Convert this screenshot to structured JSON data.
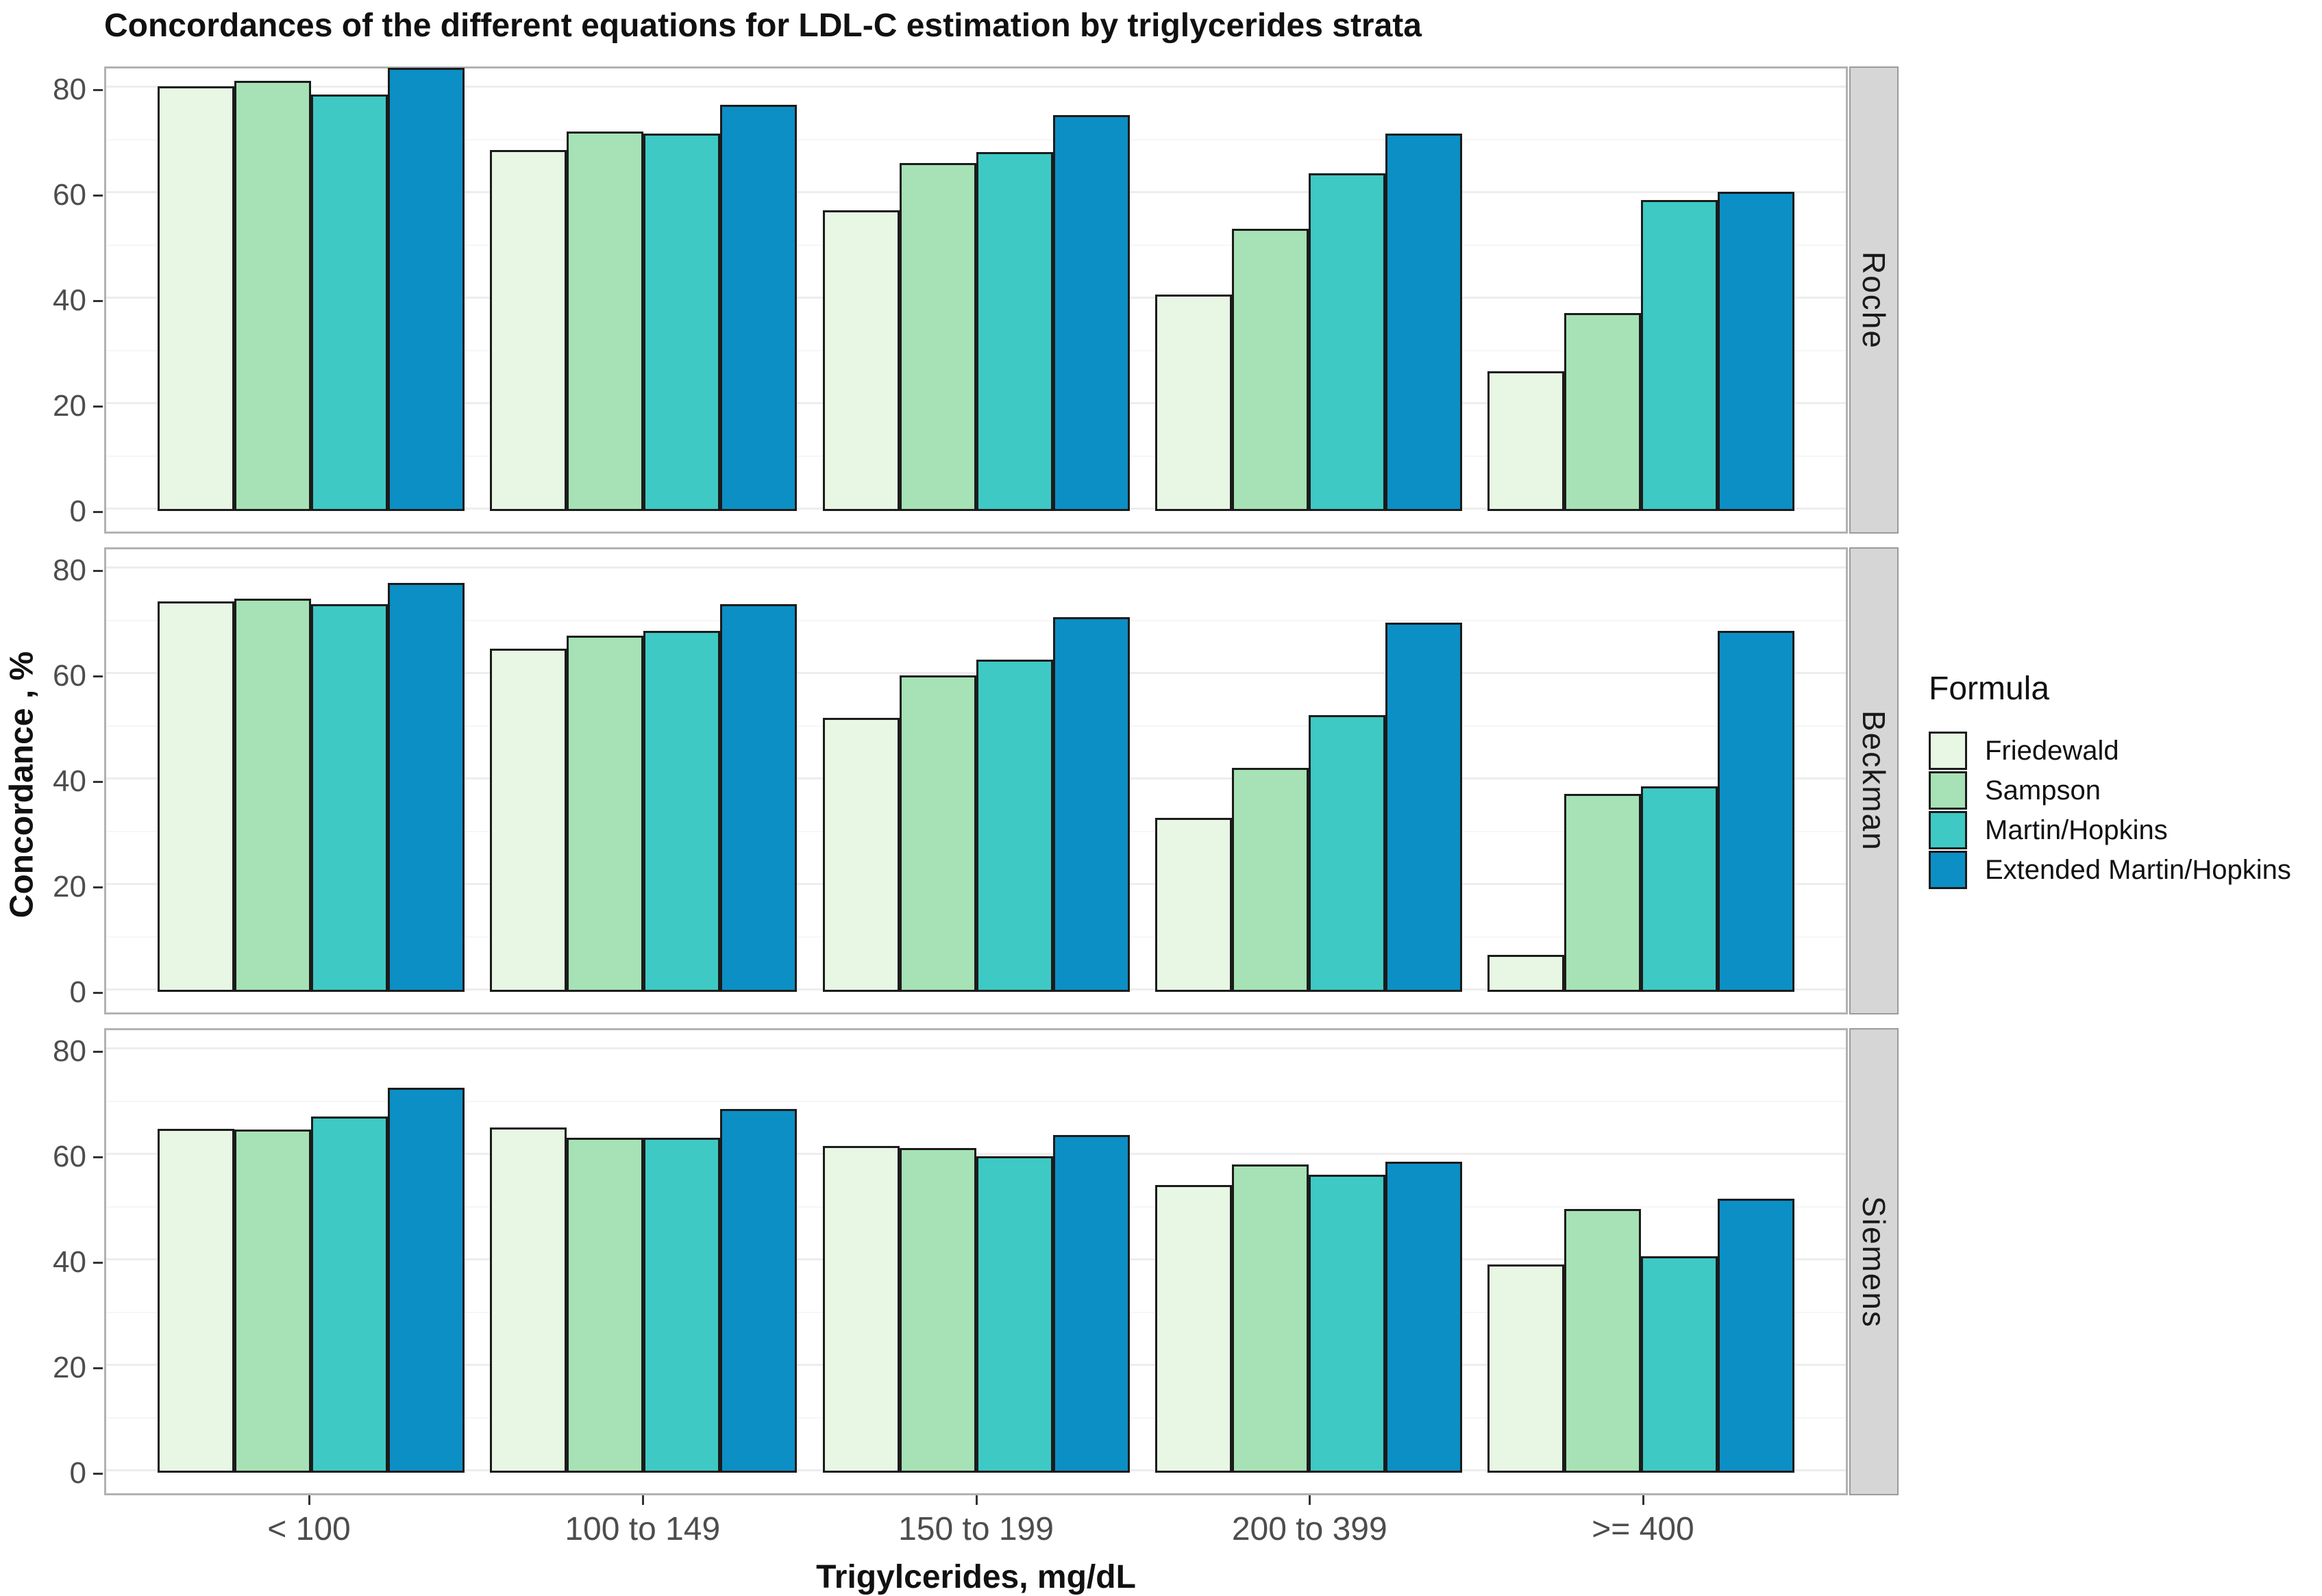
{
  "chart_data": {
    "type": "bar",
    "title": "Concordances of the different equations for LDL-C estimation by triglycerides strata",
    "xlabel": "Trigylcerides, mg/dL",
    "ylabel": "Concordance , %",
    "legend": {
      "title": "Formula",
      "position": "right"
    },
    "categories": [
      "< 100",
      "100 to 149",
      "150 to 199",
      "200 to 399",
      ">= 400"
    ],
    "yticks": [
      0,
      20,
      40,
      60,
      80
    ],
    "minor_gridlines": [
      10,
      30,
      50,
      70
    ],
    "ylim": [
      0,
      84.5
    ],
    "grid": true,
    "series": [
      {
        "name": "Friedewald",
        "color": "#e8f6e4"
      },
      {
        "name": "Sampson",
        "color": "#a6e2b5"
      },
      {
        "name": "Martin/Hopkins",
        "color": "#3ec9c5"
      },
      {
        "name": "Extended Martin/Hopkins",
        "color": "#0c8fc5"
      }
    ],
    "facets": [
      {
        "name": "Roche",
        "series": [
          {
            "name": "Friedewald",
            "values": [
              80.5,
              68.5,
              57.0,
              41.0,
              26.5
            ]
          },
          {
            "name": "Sampson",
            "values": [
              81.5,
              72.0,
              66.0,
              53.5,
              37.5
            ]
          },
          {
            "name": "Martin/Hopkins",
            "values": [
              79.0,
              71.5,
              68.0,
              64.0,
              59.0
            ]
          },
          {
            "name": "Extended Martin/Hopkins",
            "values": [
              84.0,
              77.0,
              75.0,
              71.5,
              60.5
            ]
          }
        ]
      },
      {
        "name": "Beckman",
        "series": [
          {
            "name": "Friedewald",
            "values": [
              74.0,
              65.0,
              52.0,
              33.0,
              7.0
            ]
          },
          {
            "name": "Sampson",
            "values": [
              74.5,
              67.5,
              60.0,
              42.5,
              37.5
            ]
          },
          {
            "name": "Martin/Hopkins",
            "values": [
              73.5,
              68.5,
              63.0,
              52.5,
              39.0
            ]
          },
          {
            "name": "Extended Martin/Hopkins",
            "values": [
              77.5,
              73.5,
              71.0,
              70.0,
              68.5
            ]
          }
        ]
      },
      {
        "name": "Siemens",
        "series": [
          {
            "name": "Friedewald",
            "values": [
              65.2,
              65.5,
              62.0,
              54.5,
              39.5
            ]
          },
          {
            "name": "Sampson",
            "values": [
              65.0,
              63.5,
              61.5,
              58.5,
              50.0
            ]
          },
          {
            "name": "Martin/Hopkins",
            "values": [
              67.5,
              63.5,
              60.0,
              56.5,
              41.0
            ]
          },
          {
            "name": "Extended Martin/Hopkins",
            "values": [
              73.0,
              69.0,
              64.0,
              59.0,
              52.0
            ]
          }
        ]
      }
    ],
    "colors": {
      "bar_border": "#1b1b1b",
      "panel_border": "#b2b2b2",
      "strip_background": "#d6d6d6",
      "tick_label": "#4d4d4d"
    }
  }
}
